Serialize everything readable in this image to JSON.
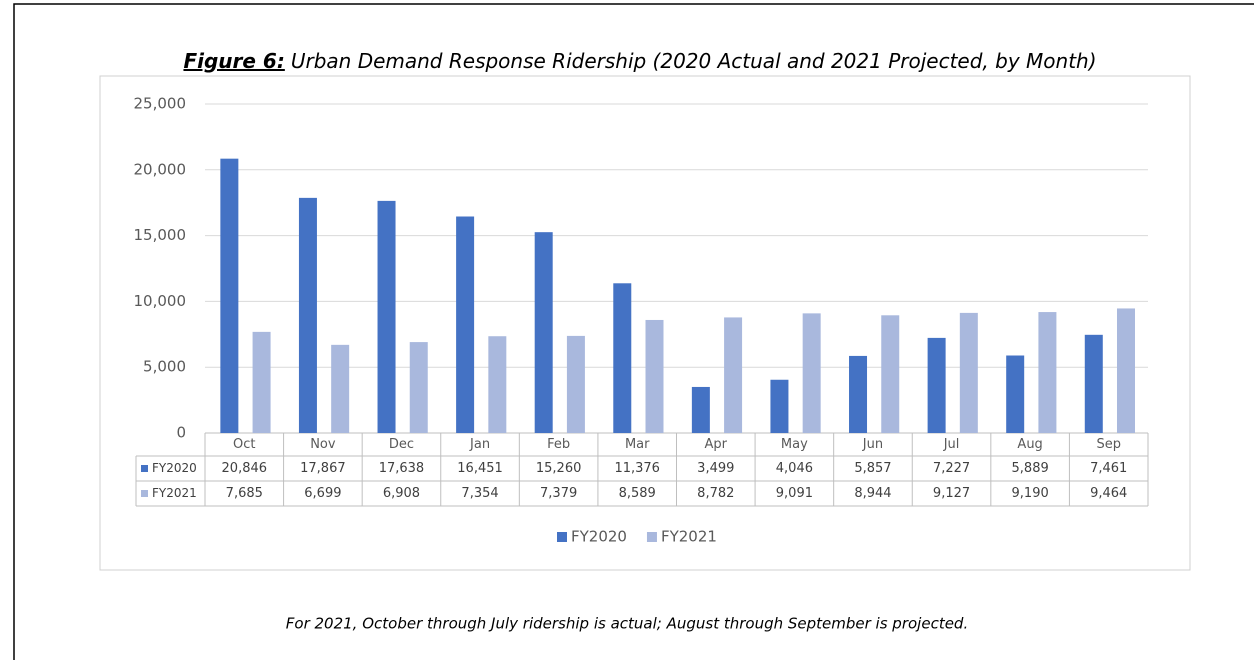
{
  "chart_data": {
    "type": "bar",
    "title_label": "Figure 6:",
    "title": "Urban Demand Response Ridership (2020 Actual and 2021 Projected, by Month)",
    "categories": [
      "Oct",
      "Nov",
      "Dec",
      "Jan",
      "Feb",
      "Mar",
      "Apr",
      "May",
      "Jun",
      "Jul",
      "Aug",
      "Sep"
    ],
    "series": [
      {
        "name": "FY2020",
        "color": "#4472c4",
        "values": [
          20846,
          17867,
          17638,
          16451,
          15260,
          11376,
          3499,
          4046,
          5857,
          7227,
          5889,
          7461
        ],
        "value_labels": [
          "20,846",
          "17,867",
          "17,638",
          "16,451",
          "15,260",
          "11,376",
          "3,499",
          "4,046",
          "5,857",
          "7,227",
          "5,889",
          "7,461"
        ]
      },
      {
        "name": "FY2021",
        "color": "#a9b8dd",
        "values": [
          7685,
          6699,
          6908,
          7354,
          7379,
          8589,
          8782,
          9091,
          8944,
          9127,
          9190,
          9464
        ],
        "value_labels": [
          "7,685",
          "6,699",
          "6,908",
          "7,354",
          "7,379",
          "8,589",
          "8,782",
          "9,091",
          "8,944",
          "9,127",
          "9,190",
          "9,464"
        ]
      }
    ],
    "ylim": [
      0,
      25000
    ],
    "yticks": [
      0,
      {
        "value": 5000,
        "label": "5,000"
      },
      {
        "value": 10000,
        "label": "10,000"
      },
      {
        "value": 15000,
        "label": "15,000"
      },
      {
        "value": 20000,
        "label": "20,000"
      },
      {
        "value": 25000,
        "label": "25,000"
      }
    ],
    "grid": true,
    "legend": "bottom",
    "footnote": "For 2021, October through July ridership is actual; August through September is projected."
  }
}
